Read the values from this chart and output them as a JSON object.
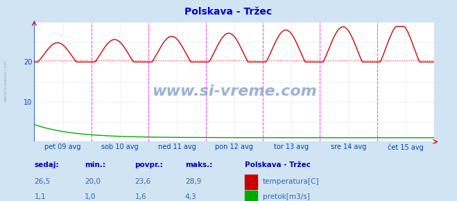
{
  "title": "Polskava - Tržec",
  "bg_color": "#d0e4f4",
  "plot_bg_color": "#ffffff",
  "title_color": "#0000cc",
  "axis_label_color": "#0044aa",
  "grid_color": "#bbccdd",
  "vline_color": "#ff44ff",
  "hline_color": "#ff4444",
  "x_tick_labels": [
    "pet 09 avg",
    "sob 10 avg",
    "ned 11 avg",
    "pon 12 avg",
    "tor 13 avg",
    "sre 14 avg",
    "čet 15 avg"
  ],
  "y_ticks": [
    10,
    20
  ],
  "ylim": [
    0,
    30
  ],
  "temp_color": "#cc0000",
  "flow_color": "#00aa00",
  "avg_temp": 20.5,
  "watermark": "www.si-vreme.com",
  "footer_labels": [
    "sedaj:",
    "min.:",
    "povpr.:",
    "maks.:"
  ],
  "footer_row1": [
    "26,5",
    "20,0",
    "23,6",
    "28,9"
  ],
  "footer_row2": [
    "1,1",
    "1,0",
    "1,6",
    "4,3"
  ],
  "legend_title": "Polskava - Tržec",
  "legend_items": [
    "temperatura[C]",
    "pretok[m3/s]"
  ],
  "legend_colors": [
    "#cc0000",
    "#00aa00"
  ],
  "sidebar_text": "www.si-vreme.com",
  "n_days": 7,
  "n_points": 336
}
